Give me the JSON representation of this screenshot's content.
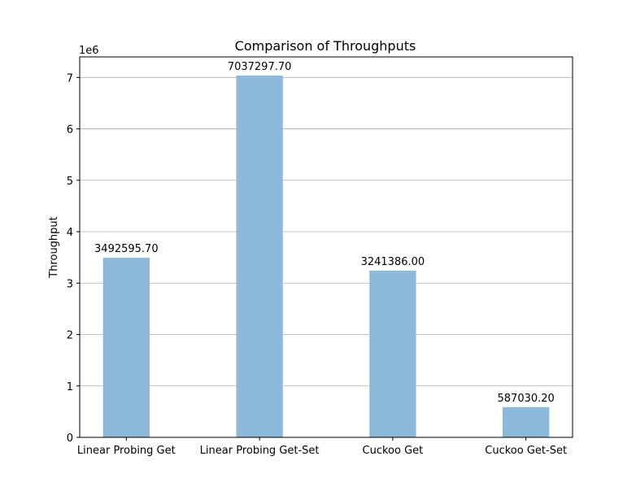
{
  "chart_data": {
    "type": "bar",
    "title": "Comparison of Throughputs",
    "xlabel": "",
    "ylabel": "Throughput",
    "offset_label": "1e6",
    "categories": [
      "Linear Probing Get",
      "Linear Probing Get-Set",
      "Cuckoo Get",
      "Cuckoo Get-Set"
    ],
    "values": [
      3492595.7,
      7037297.7,
      3241386.0,
      587030.2
    ],
    "value_labels": [
      "3492595.70",
      "7037297.70",
      "3241386.00",
      "587030.20"
    ],
    "ylim": [
      0,
      7400000
    ],
    "yticks": [
      0,
      1000000,
      2000000,
      3000000,
      4000000,
      5000000,
      6000000,
      7000000
    ],
    "ytick_labels": [
      "0",
      "1",
      "2",
      "3",
      "4",
      "5",
      "6",
      "7"
    ],
    "grid": "y",
    "bar_color": "#8db9da"
  }
}
